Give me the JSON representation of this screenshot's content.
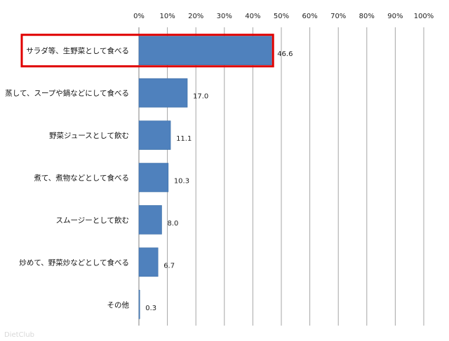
{
  "chart_data": {
    "type": "bar",
    "orientation": "horizontal",
    "categories": [
      "サラダ等、生野菜として食べる",
      "蒸して、スープや鍋などにして食べる",
      "野菜ジュースとして飲む",
      "煮て、煮物などとして食べる",
      "スムージーとして飲む",
      "炒めて、野菜炒などとして食べる",
      "その他"
    ],
    "values": [
      46.6,
      17.0,
      11.1,
      10.3,
      8.0,
      6.7,
      0.3
    ],
    "value_labels": [
      "46.6",
      "17.0",
      "11.1",
      "10.3",
      "8.0",
      "6.7",
      "0.3"
    ],
    "xlim": [
      0,
      100
    ],
    "x_ticks": [
      "0%",
      "10%",
      "20%",
      "30%",
      "40%",
      "50%",
      "60%",
      "70%",
      "80%",
      "90%",
      "100%"
    ],
    "grid": true,
    "highlighted_category": "サラダ等、生野菜として食べる",
    "bar_color": "#4f81bd",
    "highlight_color": "#e00000"
  },
  "watermark": "DietClub"
}
